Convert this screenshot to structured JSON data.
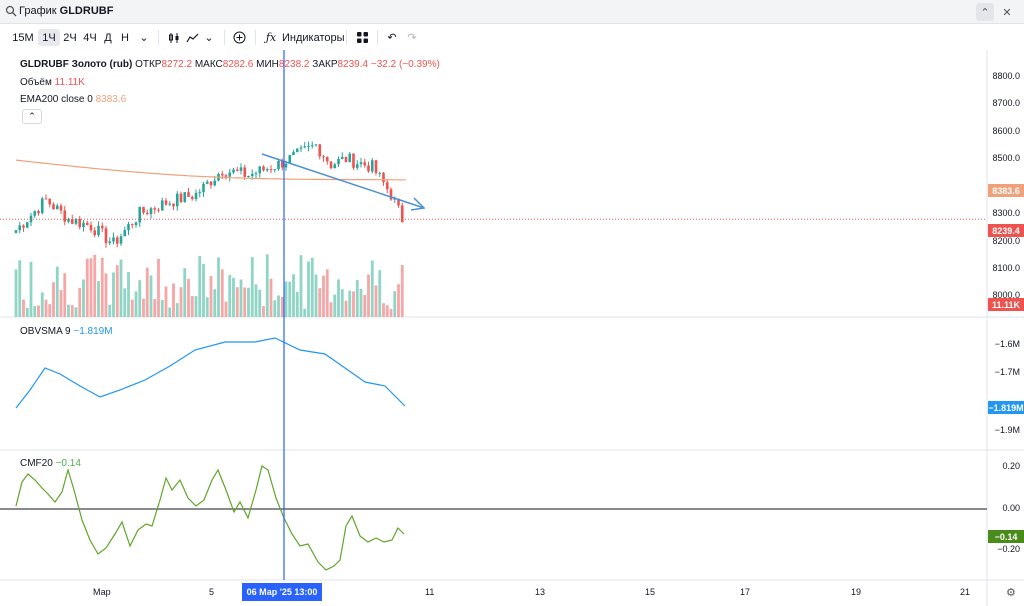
{
  "window": {
    "title_prefix": "График",
    "title_symbol": "GLDRUBF"
  },
  "toolbar": {
    "timeframes": [
      "15M",
      "1Ч",
      "2Ч",
      "4Ч",
      "Д",
      "Н"
    ],
    "active_timeframe": "1Ч",
    "indicators_label": "Индикаторы"
  },
  "legend": {
    "symbol": "GLDRUBF Золото (rub)",
    "open_label": "ОТКР",
    "open": "8272.2",
    "high_label": "МАКС",
    "high": "8282.6",
    "low_label": "МИН",
    "low": "8238.2",
    "close_label": "ЗАКР",
    "close": "8239.4",
    "change": "−32.2 (−0.39%)",
    "volume_label": "Объём",
    "volume": "11.11K",
    "ema_label": "EMA200 close 0",
    "ema": "8383.6",
    "obv_label": "OBVSMA 9",
    "obv": "−1.819M",
    "cmf_label": "CMF20",
    "cmf": "−0.14"
  },
  "price_axis": {
    "main": [
      "8800.0",
      "8700.0",
      "8600.0",
      "8500.0",
      "8300.0",
      "8200.0",
      "8100.0",
      "8000.0"
    ],
    "ema_badge": "8383.6",
    "close_badge": "8239.4",
    "volume_badge": "11.11K",
    "obv": [
      "−1.6M",
      "−1.7M",
      "−1.9M"
    ],
    "obv_badge": "−1.819M",
    "cmf": [
      "0.20",
      "0.00",
      "−0.20"
    ],
    "cmf_badge": "−0.14"
  },
  "time_axis": {
    "labels": [
      "Мар",
      "5",
      "11",
      "13",
      "15",
      "17",
      "19",
      "21"
    ],
    "crosshair_label": "06 Мар '25  13:00"
  },
  "colors": {
    "up": "#26a69a",
    "down": "#ef5350",
    "ema": "#f0a07a",
    "obv": "#2196f3",
    "cmf": "#5fa52a",
    "crosshair": "#2962ff",
    "trend": "#4a90d9"
  },
  "chart_data": {
    "type": "line",
    "title": "GLDRUBF Золото (rub)",
    "ema200": 8383.6,
    "last_close": 8239.4,
    "ylim": [
      7950,
      8850
    ],
    "cmf_range": [
      -0.3,
      0.25
    ]
  }
}
